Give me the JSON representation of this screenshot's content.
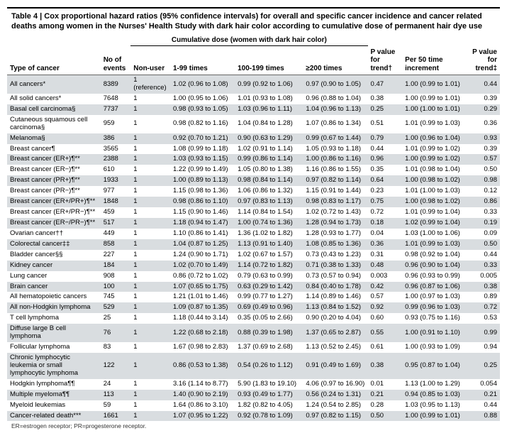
{
  "title": "Table 4 | Cox proportional hazard ratios (95% confidence intervals) for overall and specific cancer incidence and cancer related deaths among women in the Nurses' Health Study with dark hair color according to cumulative dose of permanent hair dye use",
  "group_header": "Cumulative dose (women with dark hair color)",
  "columns": {
    "type": "Type of cancer",
    "n": "No of events",
    "nonuser": "Non-user",
    "d1": "1-99 times",
    "d2": "100-199 times",
    "d3": "≥200 times",
    "p1": "P value for trend†",
    "per": "Per 50 time increment",
    "p2": "P value for trend‡"
  },
  "rows": [
    {
      "type": "All cancers*",
      "n": "8389",
      "nu": "1 (reference)",
      "d1": "1.02 (0.96 to 1.08)",
      "d2": "0.99 (0.92 to 1.06)",
      "d3": "0.97 (0.90 to 1.05)",
      "p1": "0.47",
      "per": "1.00 (0.99 to 1.01)",
      "p2": "0.44"
    },
    {
      "type": "All solid cancers*",
      "n": "7648",
      "nu": "1",
      "d1": "1.00 (0.95 to 1.06)",
      "d2": "1.01 (0.93 to 1.08)",
      "d3": "0.96 (0.88 to 1.04)",
      "p1": "0.38",
      "per": "1.00 (0.99 to 1.01)",
      "p2": "0.39"
    },
    {
      "type": "Basal cell carcinoma§",
      "n": "7737",
      "nu": "1",
      "d1": "0.98 (0.93 to 1.05)",
      "d2": "1.03 (0.96 to 1.11)",
      "d3": "1.04 (0.96 to 1.13)",
      "p1": "0.25",
      "per": "1.00 (1.00 to 1.01)",
      "p2": "0.29"
    },
    {
      "type": "Cutaneous squamous cell carcinoma§",
      "n": "959",
      "nu": "1",
      "d1": "0.98 (0.82 to 1.16)",
      "d2": "1.04 (0.84 to 1.28)",
      "d3": "1.07 (0.86 to 1.34)",
      "p1": "0.51",
      "per": "1.01 (0.99 to 1.03)",
      "p2": "0.36"
    },
    {
      "type": "Melanoma§",
      "n": "386",
      "nu": "1",
      "d1": "0.92 (0.70 to 1.21)",
      "d2": "0.90 (0.63 to 1.29)",
      "d3": "0.99 (0.67 to 1.44)",
      "p1": "0.79",
      "per": "1.00 (0.96 to 1.04)",
      "p2": "0.93"
    },
    {
      "type": "Breast cancer¶",
      "n": "3565",
      "nu": "1",
      "d1": "1.08 (0.99 to 1.18)",
      "d2": "1.02 (0.91 to 1.14)",
      "d3": "1.05 (0.93 to 1.18)",
      "p1": "0.44",
      "per": "1.01 (0.99 to 1.02)",
      "p2": "0.39"
    },
    {
      "type": "Breast cancer (ER+)¶**",
      "n": "2388",
      "nu": "1",
      "d1": "1.03 (0.93 to 1.15)",
      "d2": "0.99 (0.86 to 1.14)",
      "d3": "1.00 (0.86 to 1.16)",
      "p1": "0.96",
      "per": "1.00 (0.99 to 1.02)",
      "p2": "0.57"
    },
    {
      "type": "Breast cancer (ER−)¶**",
      "n": "610",
      "nu": "1",
      "d1": "1.22 (0.99 to 1.49)",
      "d2": "1.05 (0.80 to 1.38)",
      "d3": "1.16 (0.86 to 1.55)",
      "p1": "0.35",
      "per": "1.01 (0.98 to 1.04)",
      "p2": "0.50"
    },
    {
      "type": "Breast cancer (PR+)¶**",
      "n": "1933",
      "nu": "1",
      "d1": "1.00 (0.89 to 1.13)",
      "d2": "0.98 (0.84 to 1.14)",
      "d3": "0.97 (0.82 to 1.14)",
      "p1": "0.64",
      "per": "1.00 (0.98 to 1.02)",
      "p2": "0.98"
    },
    {
      "type": "Breast cancer (PR−)¶**",
      "n": "977",
      "nu": "1",
      "d1": "1.15 (0.98 to 1.36)",
      "d2": "1.06 (0.86 to 1.32)",
      "d3": "1.15 (0.91 to 1.44)",
      "p1": "0.23",
      "per": "1.01 (1.00 to 1.03)",
      "p2": "0.12"
    },
    {
      "type": "Breast cancer (ER+/PR+)¶**",
      "n": "1848",
      "nu": "1",
      "d1": "0.98 (0.86 to 1.10)",
      "d2": "0.97 (0.83 to 1.13)",
      "d3": "0.98 (0.83 to 1.17)",
      "p1": "0.75",
      "per": "1.00 (0.98 to 1.02)",
      "p2": "0.86"
    },
    {
      "type": "Breast cancer (ER+/PR−)¶**",
      "n": "459",
      "nu": "1",
      "d1": "1.15 (0.90 to 1.46)",
      "d2": "1.14 (0.84 to 1.54)",
      "d3": "1.02 (0.72 to 1.43)",
      "p1": "0.72",
      "per": "1.01 (0.99 to 1.04)",
      "p2": "0.33"
    },
    {
      "type": "Breast cancer (ER−/PR−)¶**",
      "n": "517",
      "nu": "1",
      "d1": "1.18 (0.94 to 1.47)",
      "d2": "1.00 (0.74 to 1.36)",
      "d3": "1.28 (0.94 to 1.73)",
      "p1": "0.18",
      "per": "1.02 (0.99 to 1.04)",
      "p2": "0.19"
    },
    {
      "type": "Ovarian cancer††",
      "n": "449",
      "nu": "1",
      "d1": "1.10 (0.86 to 1.41)",
      "d2": "1.36 (1.02 to 1.82)",
      "d3": "1.28 (0.93 to 1.77)",
      "p1": "0.04",
      "per": "1.03 (1.00 to 1.06)",
      "p2": "0.09"
    },
    {
      "type": "Colorectal cancer‡‡",
      "n": "858",
      "nu": "1",
      "d1": "1.04 (0.87 to 1.25)",
      "d2": "1.13 (0.91 to 1.40)",
      "d3": "1.08 (0.85 to 1.36)",
      "p1": "0.36",
      "per": "1.01 (0.99 to 1.03)",
      "p2": "0.50"
    },
    {
      "type": "Bladder cancer§§",
      "n": "227",
      "nu": "1",
      "d1": "1.24 (0.90 to 1.71)",
      "d2": "1.02 (0.67 to 1.57)",
      "d3": "0.73 (0.43 to 1.23)",
      "p1": "0.31",
      "per": "0.98 (0.92 to 1.04)",
      "p2": "0.44"
    },
    {
      "type": "Kidney cancer",
      "n": "184",
      "nu": "1",
      "d1": "1.02 (0.70 to 1.49)",
      "d2": "1.14 (0.72 to 1.82)",
      "d3": "0.71 (0.38 to 1.33)",
      "p1": "0.48",
      "per": "0.96 (0.90 to 1.04)",
      "p2": "0.33"
    },
    {
      "type": "Lung cancer",
      "n": "908",
      "nu": "1",
      "d1": "0.86 (0.72 to 1.02)",
      "d2": "0.79 (0.63 to 0.99)",
      "d3": "0.73 (0.57 to 0.94)",
      "p1": "0.003",
      "per": "0.96 (0.93 to 0.99)",
      "p2": "0.005"
    },
    {
      "type": "Brain cancer",
      "n": "100",
      "nu": "1",
      "d1": "1.07 (0.65 to 1.75)",
      "d2": "0.63 (0.29 to 1.42)",
      "d3": "0.84 (0.40 to 1.78)",
      "p1": "0.42",
      "per": "0.96 (0.87 to 1.06)",
      "p2": "0.38"
    },
    {
      "type": "All hematopoietic cancers",
      "n": "745",
      "nu": "1",
      "d1": "1.21 (1.01 to 1.46)",
      "d2": "0.99 (0.77 to 1.27)",
      "d3": "1.14 (0.89 to 1.46)",
      "p1": "0.57",
      "per": "1.00 (0.97 to 1.03)",
      "p2": "0.89"
    },
    {
      "type": "All non-Hodgkin lymphoma",
      "n": "529",
      "nu": "1",
      "d1": "1.09 (0.87 to 1.35)",
      "d2": "0.69 (0.49 to 0.96)",
      "d3": "1.13 (0.84 to 1.52)",
      "p1": "0.92",
      "per": "0.99 (0.96 to 1.03)",
      "p2": "0.72"
    },
    {
      "type": "T cell lymphoma",
      "n": "25",
      "nu": "1",
      "d1": "1.18 (0.44 to 3.14)",
      "d2": "0.35 (0.05 to 2.66)",
      "d3": "0.90 (0.20 to 4.04)",
      "p1": "0.60",
      "per": "0.93 (0.75 to 1.16)",
      "p2": "0.53"
    },
    {
      "type": "Diffuse large B cell lymphoma",
      "n": "76",
      "nu": "1",
      "d1": "1.22 (0.68 to 2.18)",
      "d2": "0.88 (0.39 to 1.98)",
      "d3": "1.37 (0.65 to 2.87)",
      "p1": "0.55",
      "per": "1.00 (0.91 to 1.10)",
      "p2": "0.99"
    },
    {
      "type": "Follicular lymphoma",
      "n": "83",
      "nu": "1",
      "d1": "1.67 (0.98 to 2.83)",
      "d2": "1.37 (0.69 to 2.68)",
      "d3": "1.13 (0.52 to 2.45)",
      "p1": "0.61",
      "per": "1.00 (0.93 to 1.09)",
      "p2": "0.94"
    },
    {
      "type": "Chronic lymphocytic leukemia or small lymphocytic lymphoma",
      "n": "122",
      "nu": "1",
      "d1": "0.86 (0.53 to 1.38)",
      "d2": "0.54 (0.26 to 1.12)",
      "d3": "0.91 (0.49 to 1.69)",
      "p1": "0.38",
      "per": "0.95 (0.87 to 1.04)",
      "p2": "0.25"
    },
    {
      "type": "Hodgkin lymphoma¶¶",
      "n": "24",
      "nu": "1",
      "d1": "3.16 (1.14 to 8.77)",
      "d2": "5.90 (1.83 to 19.10)",
      "d3": "4.06 (0.97 to 16.90)",
      "p1": "0.01",
      "per": "1.13 (1.00 to 1.29)",
      "p2": "0.054"
    },
    {
      "type": "Multiple myeloma¶¶",
      "n": "113",
      "nu": "1",
      "d1": "1.40 (0.90 to 2.19)",
      "d2": "0.93 (0.49 to 1.77)",
      "d3": "0.56 (0.24 to 1.31)",
      "p1": "0.21",
      "per": "0.94 (0.85 to 1.03)",
      "p2": "0.21"
    },
    {
      "type": "Myeloid leukemias",
      "n": "59",
      "nu": "1",
      "d1": "1.64 (0.86 to 3.10)",
      "d2": "1.82 (0.82 to 4.05)",
      "d3": "1.24 (0.54 to 2.85)",
      "p1": "0.28",
      "per": "1.03 (0.95 to 1.13)",
      "p2": "0.44"
    },
    {
      "type": "Cancer-related death***",
      "n": "1661",
      "nu": "1",
      "d1": "1.07 (0.95 to 1.22)",
      "d2": "0.92 (0.78 to 1.09)",
      "d3": "0.97 (0.82 to 1.15)",
      "p1": "0.50",
      "per": "1.00 (0.99 to 1.01)",
      "p2": "0.88"
    }
  ],
  "footnote": "ER=estrogen receptor; PR=progesterone receptor."
}
